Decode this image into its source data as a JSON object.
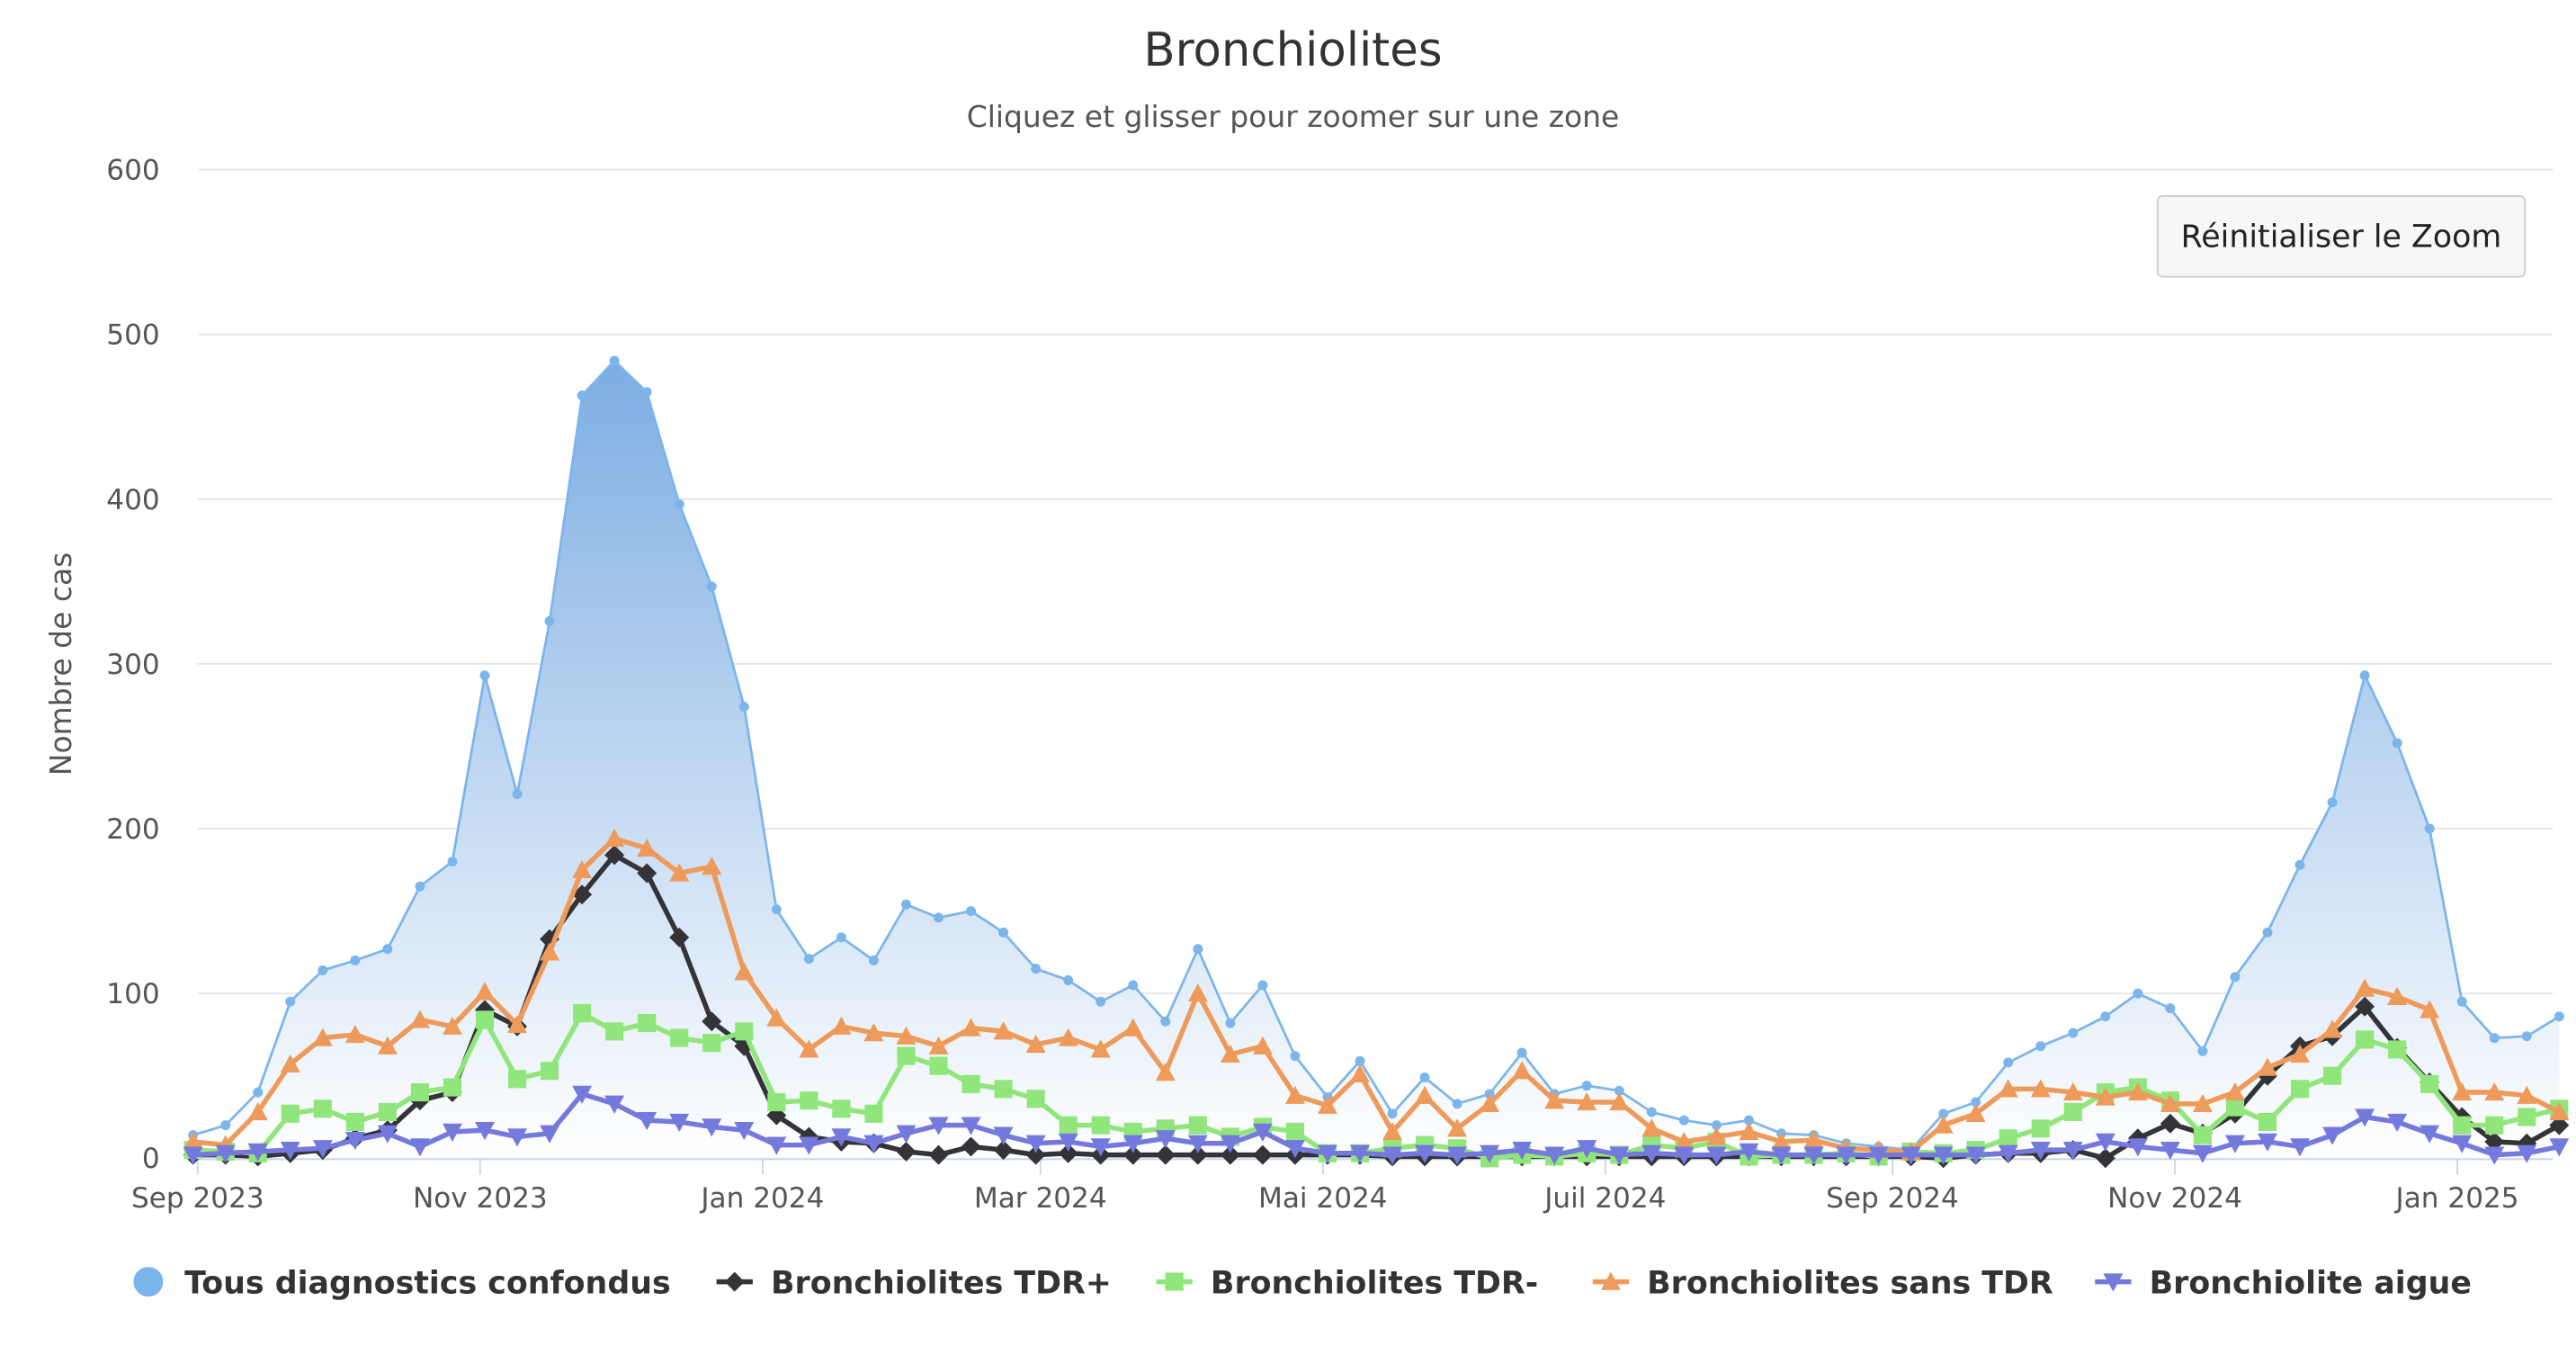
{
  "chart_data": {
    "type": "area+line",
    "title": "Bronchiolites",
    "subtitle": "Cliquez et glisser pour zoomer sur une zone",
    "xlabel": "",
    "ylabel": "Nombre de cas",
    "ylim": [
      0,
      600
    ],
    "yticks": [
      0,
      100,
      200,
      300,
      400,
      500,
      600
    ],
    "xticks": [
      {
        "date": "2023-09-01",
        "label": "Sep 2023"
      },
      {
        "date": "2023-11-01",
        "label": "Nov 2023"
      },
      {
        "date": "2024-01-01",
        "label": "Jan 2024"
      },
      {
        "date": "2024-03-01",
        "label": "Mar 2024"
      },
      {
        "date": "2024-05-01",
        "label": "Mai 2024"
      },
      {
        "date": "2024-07-01",
        "label": "Juil 2024"
      },
      {
        "date": "2024-09-01",
        "label": "Sep 2024"
      },
      {
        "date": "2024-11-01",
        "label": "Nov 2024"
      },
      {
        "date": "2025-01-01",
        "label": "Jan 2025"
      }
    ],
    "grid": true,
    "legend_position": "bottom",
    "x": [
      "2023-08-31",
      "2023-09-07",
      "2023-09-14",
      "2023-09-21",
      "2023-09-28",
      "2023-10-05",
      "2023-10-12",
      "2023-10-19",
      "2023-10-26",
      "2023-11-02",
      "2023-11-09",
      "2023-11-16",
      "2023-11-23",
      "2023-11-30",
      "2023-12-07",
      "2023-12-14",
      "2023-12-21",
      "2023-12-28",
      "2024-01-04",
      "2024-01-11",
      "2024-01-18",
      "2024-01-25",
      "2024-02-01",
      "2024-02-08",
      "2024-02-15",
      "2024-02-22",
      "2024-02-29",
      "2024-03-07",
      "2024-03-14",
      "2024-03-21",
      "2024-03-28",
      "2024-04-04",
      "2024-04-11",
      "2024-04-18",
      "2024-04-25",
      "2024-05-02",
      "2024-05-09",
      "2024-05-16",
      "2024-05-23",
      "2024-05-30",
      "2024-06-06",
      "2024-06-13",
      "2024-06-20",
      "2024-06-27",
      "2024-07-04",
      "2024-07-11",
      "2024-07-18",
      "2024-07-25",
      "2024-08-01",
      "2024-08-08",
      "2024-08-15",
      "2024-08-22",
      "2024-08-29",
      "2024-09-05",
      "2024-09-12",
      "2024-09-19",
      "2024-09-26",
      "2024-10-03",
      "2024-10-10",
      "2024-10-17",
      "2024-10-24",
      "2024-10-31",
      "2024-11-07",
      "2024-11-14",
      "2024-11-21",
      "2024-11-28",
      "2024-12-05",
      "2024-12-12",
      "2024-12-19",
      "2024-12-26",
      "2025-01-02",
      "2025-01-09",
      "2025-01-16",
      "2025-01-23"
    ],
    "series": [
      {
        "name": "Tous diagnostics confondus",
        "type": "area",
        "marker": "circle",
        "color": "#7cb5ec",
        "values": [
          14,
          20,
          40,
          95,
          114,
          120,
          127,
          165,
          180,
          293,
          221,
          326,
          463,
          484,
          465,
          397,
          347,
          274,
          151,
          121,
          134,
          120,
          154,
          146,
          150,
          137,
          115,
          108,
          95,
          105,
          83,
          127,
          82,
          105,
          62,
          37,
          59,
          27,
          49,
          33,
          39,
          64,
          39,
          44,
          41,
          28,
          23,
          20,
          23,
          15,
          14,
          9,
          7,
          5,
          27,
          34,
          58,
          68,
          76,
          86,
          100,
          91,
          65,
          110,
          137,
          178,
          216,
          293,
          252,
          200,
          95,
          73,
          74,
          86
        ]
      },
      {
        "name": "Bronchiolites TDR+",
        "type": "line",
        "marker": "diamond",
        "color": "#333338",
        "values": [
          2,
          2,
          1,
          3,
          5,
          12,
          17,
          35,
          40,
          90,
          80,
          133,
          160,
          184,
          173,
          134,
          83,
          68,
          26,
          13,
          10,
          9,
          4,
          2,
          7,
          5,
          2,
          3,
          2,
          2,
          2,
          2,
          2,
          2,
          2,
          2,
          2,
          1,
          1,
          1,
          1,
          1,
          1,
          1,
          1,
          1,
          1,
          1,
          1,
          1,
          1,
          1,
          1,
          1,
          0,
          2,
          3,
          3,
          5,
          0,
          12,
          21,
          15,
          27,
          50,
          68,
          74,
          92,
          67,
          46,
          25,
          10,
          9,
          20
        ]
      },
      {
        "name": "Bronchiolites TDR-",
        "type": "line",
        "marker": "square",
        "color": "#90e67a",
        "values": [
          5,
          4,
          3,
          27,
          30,
          22,
          28,
          40,
          43,
          84,
          48,
          53,
          88,
          77,
          82,
          73,
          70,
          77,
          34,
          35,
          30,
          27,
          62,
          56,
          45,
          42,
          36,
          20,
          20,
          16,
          18,
          20,
          13,
          19,
          16,
          3,
          3,
          6,
          8,
          6,
          0,
          2,
          1,
          3,
          2,
          8,
          6,
          10,
          1,
          2,
          2,
          3,
          1,
          4,
          3,
          5,
          12,
          18,
          28,
          40,
          43,
          35,
          14,
          31,
          22,
          42,
          50,
          72,
          66,
          45,
          20,
          20,
          25,
          30
        ]
      },
      {
        "name": "Bronchiolites sans TDR",
        "type": "line",
        "marker": "triangle",
        "color": "#ee9a5a",
        "values": [
          10,
          8,
          28,
          57,
          73,
          75,
          68,
          84,
          80,
          101,
          81,
          125,
          175,
          194,
          188,
          173,
          177,
          113,
          85,
          66,
          80,
          76,
          74,
          68,
          79,
          77,
          69,
          73,
          66,
          79,
          52,
          100,
          63,
          68,
          38,
          32,
          51,
          16,
          38,
          18,
          33,
          53,
          35,
          34,
          34,
          18,
          10,
          13,
          16,
          10,
          11,
          6,
          5,
          4,
          20,
          27,
          42,
          42,
          40,
          37,
          40,
          33,
          33,
          40,
          55,
          63,
          78,
          103,
          98,
          90,
          40,
          40,
          38,
          28
        ]
      },
      {
        "name": "Bronchiolite aigue",
        "type": "line",
        "marker": "triangle-down",
        "color": "#7479dd",
        "values": [
          2,
          3,
          4,
          5,
          6,
          11,
          15,
          7,
          16,
          17,
          13,
          15,
          39,
          33,
          23,
          22,
          19,
          17,
          8,
          8,
          13,
          9,
          15,
          20,
          20,
          14,
          9,
          10,
          7,
          9,
          12,
          9,
          9,
          16,
          6,
          3,
          3,
          2,
          3,
          2,
          3,
          5,
          2,
          6,
          2,
          3,
          2,
          2,
          4,
          2,
          2,
          2,
          2,
          2,
          2,
          2,
          3,
          5,
          5,
          10,
          7,
          5,
          3,
          9,
          10,
          7,
          14,
          25,
          22,
          15,
          9,
          2,
          3,
          7
        ]
      }
    ]
  },
  "toolbar": {
    "reset_zoom_label": "Réinitialiser le Zoom"
  }
}
